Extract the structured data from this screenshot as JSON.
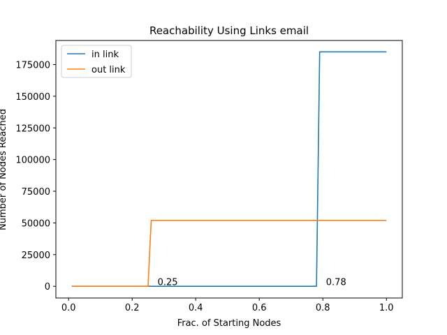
{
  "chart_data": {
    "type": "line",
    "title": "Reachability Using Links email",
    "xlabel": "Frac. of Starting Nodes",
    "ylabel": "Number of Nodes Reached",
    "xlim": [
      -0.04,
      1.05
    ],
    "ylim": [
      -9250,
      194000
    ],
    "xticks": [
      0.0,
      0.2,
      0.4,
      0.6,
      0.8,
      1.0
    ],
    "xtick_labels": [
      "0.0",
      "0.2",
      "0.4",
      "0.6",
      "0.8",
      "1.0"
    ],
    "yticks": [
      0,
      25000,
      50000,
      75000,
      100000,
      125000,
      150000,
      175000
    ],
    "ytick_labels": [
      "0",
      "25000",
      "50000",
      "75000",
      "100000",
      "125000",
      "150000",
      "175000"
    ],
    "grid": false,
    "legend_position": "upper-left",
    "series": [
      {
        "name": "in link",
        "color": "#1f77b4",
        "x": [
          0.01,
          0.78,
          0.79,
          1.0
        ],
        "y": [
          0,
          0,
          185000,
          185000
        ]
      },
      {
        "name": "out link",
        "color": "#ff7f0e",
        "x": [
          0.01,
          0.25,
          0.26,
          1.0
        ],
        "y": [
          0,
          0,
          52000,
          52000
        ]
      }
    ],
    "annotations": [
      {
        "text": "0.25",
        "x": 0.28,
        "y": 1000
      },
      {
        "text": "0.78",
        "x": 0.81,
        "y": 1000
      }
    ]
  }
}
